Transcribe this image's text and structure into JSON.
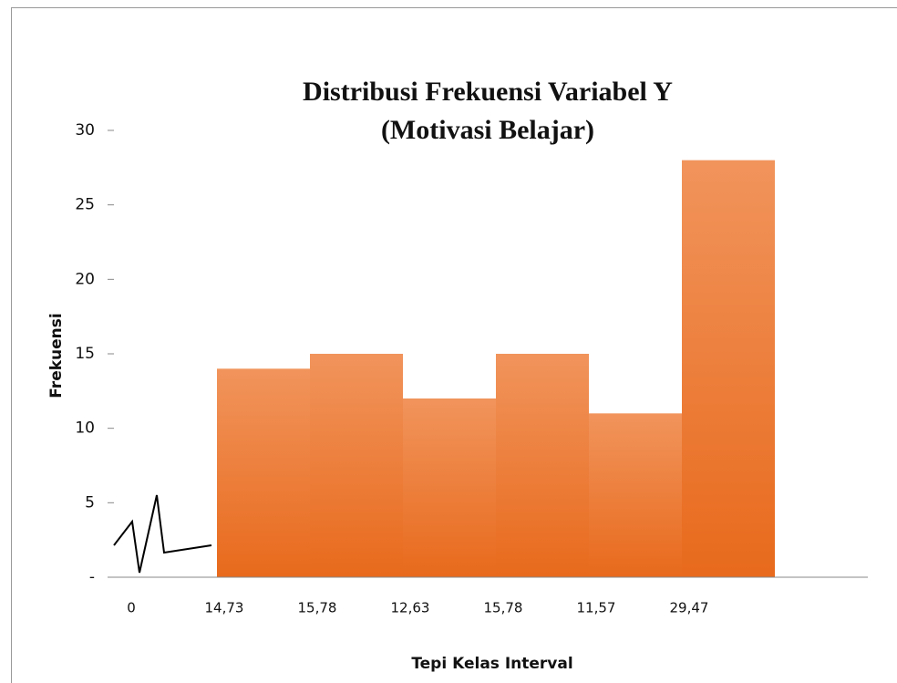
{
  "chart_data": {
    "type": "histogram",
    "title": [
      "Distribusi Frekuensi Variabel Y",
      "(Motivasi Belajar)"
    ],
    "x_label": "Tepi Kelas Interval",
    "y_label": "Frekuensi",
    "bin_labels": [
      "0",
      "14,73",
      "15,78",
      "12,63",
      "15,78",
      "11,57",
      "29,47"
    ],
    "values": [
      14,
      15,
      12,
      15,
      11,
      28
    ],
    "color": "#ed7d31",
    "ylim": [
      0,
      30
    ],
    "yticks": [
      {
        "value": 0,
        "label": "-"
      },
      5,
      10,
      15,
      20,
      25,
      30
    ]
  }
}
